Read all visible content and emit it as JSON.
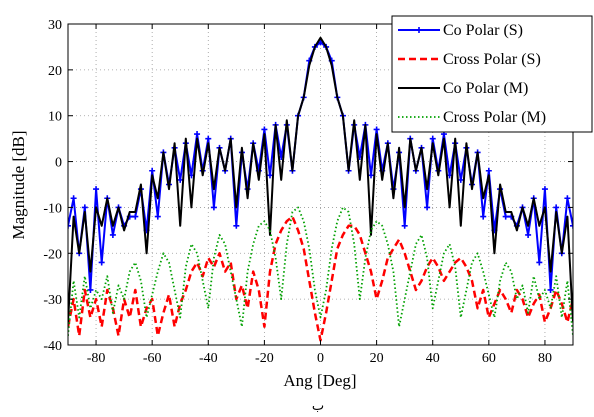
{
  "chart_data": {
    "type": "line",
    "xlabel": "Ang [Deg]",
    "ylabel": "Magnitude [dB]",
    "xlim": [
      -90,
      90
    ],
    "ylim": [
      -40,
      30
    ],
    "xticks": [
      -80,
      -60,
      -40,
      -20,
      0,
      20,
      40,
      60,
      80
    ],
    "yticks": [
      -40,
      -30,
      -20,
      -10,
      0,
      10,
      20,
      30
    ],
    "grid": true,
    "legend_position": "top-right",
    "caption": "ب",
    "series": [
      {
        "name": "Co Polar (S)",
        "color": "#0000ff",
        "style": "solid-with-markers",
        "x": [
          -90,
          -88,
          -86,
          -84,
          -82,
          -80,
          -78,
          -76,
          -74,
          -72,
          -70,
          -68,
          -66,
          -64,
          -62,
          -60,
          -58,
          -56,
          -54,
          -52,
          -50,
          -48,
          -46,
          -44,
          -42,
          -40,
          -38,
          -36,
          -34,
          -32,
          -30,
          -28,
          -26,
          -24,
          -22,
          -20,
          -18,
          -16,
          -14,
          -12,
          -10,
          -8,
          -6,
          -4,
          -2,
          0,
          2,
          4,
          6,
          8,
          10,
          12,
          14,
          16,
          18,
          20,
          22,
          24,
          26,
          28,
          30,
          32,
          34,
          36,
          38,
          40,
          42,
          44,
          46,
          48,
          50,
          52,
          54,
          56,
          58,
          60,
          62,
          64,
          66,
          68,
          70,
          72,
          74,
          76,
          78,
          80,
          82,
          84,
          86,
          88,
          90
        ],
        "y": [
          -14,
          -8,
          -20,
          -10,
          -28,
          -6,
          -22,
          -8,
          -16,
          -10,
          -14,
          -12,
          -12,
          -6,
          -15,
          -2,
          -12,
          2,
          -5,
          3,
          -4,
          4,
          -3,
          6,
          -2,
          5,
          -10,
          3,
          -2,
          5,
          -14,
          2,
          -6,
          4,
          -2,
          7,
          -3,
          8,
          1,
          8,
          -2,
          10,
          14,
          22,
          25,
          26,
          25,
          22,
          14,
          10,
          -2,
          8,
          1,
          8,
          -3,
          7,
          -2,
          4,
          -6,
          2,
          -14,
          5,
          -2,
          3,
          -10,
          5,
          -2,
          6,
          -3,
          4,
          -4,
          3,
          -5,
          2,
          -12,
          -2,
          -15,
          -6,
          -12,
          -12,
          -14,
          -10,
          -16,
          -8,
          -22,
          -6,
          -28,
          -10,
          -20,
          -8,
          -14
        ]
      },
      {
        "name": "Cross Polar (S)",
        "color": "#ff0000",
        "style": "dashed",
        "x": [
          -90,
          -88,
          -86,
          -84,
          -82,
          -80,
          -78,
          -76,
          -74,
          -72,
          -70,
          -68,
          -66,
          -64,
          -62,
          -60,
          -58,
          -56,
          -54,
          -52,
          -50,
          -48,
          -46,
          -44,
          -42,
          -40,
          -38,
          -36,
          -34,
          -32,
          -30,
          -28,
          -26,
          -24,
          -22,
          -20,
          -18,
          -16,
          -14,
          -12,
          -10,
          -8,
          -6,
          -4,
          -2,
          0,
          2,
          4,
          6,
          8,
          10,
          12,
          14,
          16,
          18,
          20,
          22,
          24,
          26,
          28,
          30,
          32,
          34,
          36,
          38,
          40,
          42,
          44,
          46,
          48,
          50,
          52,
          54,
          56,
          58,
          60,
          62,
          64,
          66,
          68,
          70,
          72,
          74,
          76,
          78,
          80,
          82,
          84,
          86,
          88,
          90
        ],
        "y": [
          -36,
          -30,
          -38,
          -28,
          -34,
          -30,
          -36,
          -28,
          -32,
          -38,
          -30,
          -34,
          -28,
          -36,
          -32,
          -30,
          -38,
          -33,
          -29,
          -36,
          -31,
          -28,
          -24,
          -22,
          -25,
          -21,
          -23,
          -20,
          -24,
          -22,
          -30,
          -27,
          -32,
          -24,
          -28,
          -36,
          -24,
          -18,
          -15,
          -13,
          -12,
          -15,
          -19,
          -26,
          -33,
          -39,
          -33,
          -26,
          -19,
          -16,
          -14,
          -14,
          -16,
          -20,
          -24,
          -30,
          -26,
          -21,
          -19,
          -17,
          -20,
          -24,
          -28,
          -26,
          -23,
          -21,
          -23,
          -26,
          -24,
          -22,
          -21,
          -23,
          -26,
          -32,
          -28,
          -34,
          -31,
          -28,
          -30,
          -33,
          -28,
          -30,
          -34,
          -31,
          -29,
          -35,
          -32,
          -28,
          -31,
          -35,
          -30
        ]
      },
      {
        "name": "Co Polar (M)",
        "color": "#000000",
        "style": "solid",
        "x": [
          -90,
          -88,
          -86,
          -84,
          -82,
          -80,
          -78,
          -76,
          -74,
          -72,
          -70,
          -68,
          -66,
          -64,
          -62,
          -60,
          -58,
          -56,
          -54,
          -52,
          -50,
          -48,
          -46,
          -44,
          -42,
          -40,
          -38,
          -36,
          -34,
          -32,
          -30,
          -28,
          -26,
          -24,
          -22,
          -20,
          -18,
          -16,
          -14,
          -12,
          -10,
          -8,
          -6,
          -4,
          -2,
          0,
          2,
          4,
          6,
          8,
          10,
          12,
          14,
          16,
          18,
          20,
          22,
          24,
          26,
          28,
          30,
          32,
          34,
          36,
          38,
          40,
          42,
          44,
          46,
          48,
          50,
          52,
          54,
          56,
          58,
          60,
          62,
          64,
          66,
          68,
          70,
          72,
          74,
          76,
          78,
          80,
          82,
          84,
          86,
          88,
          90
        ],
        "y": [
          -35,
          -12,
          -20,
          -11,
          -24,
          -10,
          -14,
          -8,
          -14,
          -10,
          -15,
          -11,
          -11,
          -5,
          -20,
          -3,
          -8,
          2,
          -6,
          4,
          -14,
          5,
          -10,
          5,
          -3,
          4,
          -6,
          3,
          -2,
          5,
          -10,
          3,
          -8,
          4,
          -4,
          6,
          -16,
          8,
          -4,
          9,
          -2,
          10,
          14,
          21,
          25,
          27,
          25,
          21,
          14,
          10,
          -2,
          9,
          -4,
          8,
          -16,
          6,
          -4,
          4,
          -8,
          3,
          -10,
          5,
          -2,
          3,
          -6,
          4,
          -3,
          5,
          -10,
          5,
          -14,
          4,
          -6,
          2,
          -8,
          -3,
          -20,
          -5,
          -11,
          -11,
          -15,
          -10,
          -14,
          -8,
          -14,
          -10,
          -24,
          -11,
          -20,
          -12,
          -35
        ]
      },
      {
        "name": "Cross Polar (M)",
        "color": "#00a000",
        "style": "dotted",
        "x": [
          -90,
          -88,
          -86,
          -84,
          -82,
          -80,
          -78,
          -76,
          -74,
          -72,
          -70,
          -68,
          -66,
          -64,
          -62,
          -60,
          -58,
          -56,
          -54,
          -52,
          -50,
          -48,
          -46,
          -44,
          -42,
          -40,
          -38,
          -36,
          -34,
          -32,
          -30,
          -28,
          -26,
          -24,
          -22,
          -20,
          -18,
          -16,
          -14,
          -12,
          -10,
          -8,
          -6,
          -4,
          -2,
          0,
          2,
          4,
          6,
          8,
          10,
          12,
          14,
          16,
          18,
          20,
          22,
          24,
          26,
          28,
          30,
          32,
          34,
          36,
          38,
          40,
          42,
          44,
          46,
          48,
          50,
          52,
          54,
          56,
          58,
          60,
          62,
          64,
          66,
          68,
          70,
          72,
          74,
          76,
          78,
          80,
          82,
          84,
          86,
          88,
          90
        ],
        "y": [
          -38,
          -26,
          -34,
          -25,
          -32,
          -28,
          -30,
          -25,
          -33,
          -27,
          -30,
          -24,
          -22,
          -26,
          -34,
          -29,
          -24,
          -20,
          -22,
          -28,
          -34,
          -23,
          -18,
          -20,
          -26,
          -32,
          -21,
          -16,
          -18,
          -24,
          -30,
          -36,
          -24,
          -18,
          -14,
          -13,
          -15,
          -21,
          -30,
          -18,
          -11,
          -10,
          -13,
          -19,
          -28,
          -34,
          -28,
          -19,
          -13,
          -10,
          -11,
          -18,
          -30,
          -21,
          -15,
          -13,
          -14,
          -18,
          -24,
          -36,
          -30,
          -24,
          -18,
          -16,
          -21,
          -32,
          -26,
          -20,
          -18,
          -23,
          -34,
          -28,
          -22,
          -20,
          -24,
          -29,
          -34,
          -26,
          -22,
          -24,
          -30,
          -27,
          -33,
          -25,
          -30,
          -28,
          -32,
          -25,
          -34,
          -26,
          -38
        ]
      }
    ]
  }
}
